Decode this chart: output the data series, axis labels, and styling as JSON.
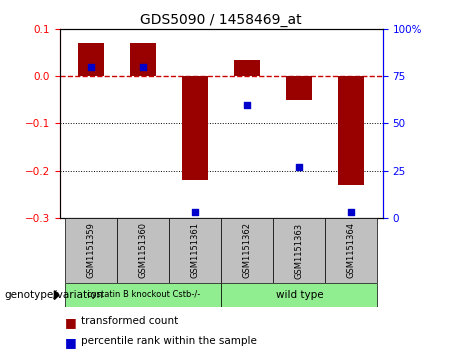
{
  "title": "GDS5090 / 1458469_at",
  "samples": [
    "GSM1151359",
    "GSM1151360",
    "GSM1151361",
    "GSM1151362",
    "GSM1151363",
    "GSM1151364"
  ],
  "red_bars": [
    0.07,
    0.07,
    -0.22,
    0.035,
    -0.05,
    -0.23
  ],
  "blue_dots": [
    80,
    80,
    3,
    60,
    27,
    3
  ],
  "ylim_left": [
    -0.3,
    0.1
  ],
  "ylim_right": [
    0,
    100
  ],
  "group1_label": "cystatin B knockout Cstb-/-",
  "group2_label": "wild type",
  "group1_color": "#90EE90",
  "group2_color": "#90EE90",
  "bar_color": "#990000",
  "dot_color": "#0000CC",
  "zero_line_color": "#CC0000",
  "sample_box_color": "#C0C0C0",
  "legend_red_label": "transformed count",
  "legend_blue_label": "percentile rank within the sample",
  "bar_width": 0.5,
  "left_yticks": [
    -0.3,
    -0.2,
    -0.1,
    0.0,
    0.1
  ],
  "right_yticks": [
    0,
    25,
    50,
    75,
    100
  ],
  "right_yticklabels": [
    "0",
    "25",
    "50",
    "75",
    "100%"
  ]
}
